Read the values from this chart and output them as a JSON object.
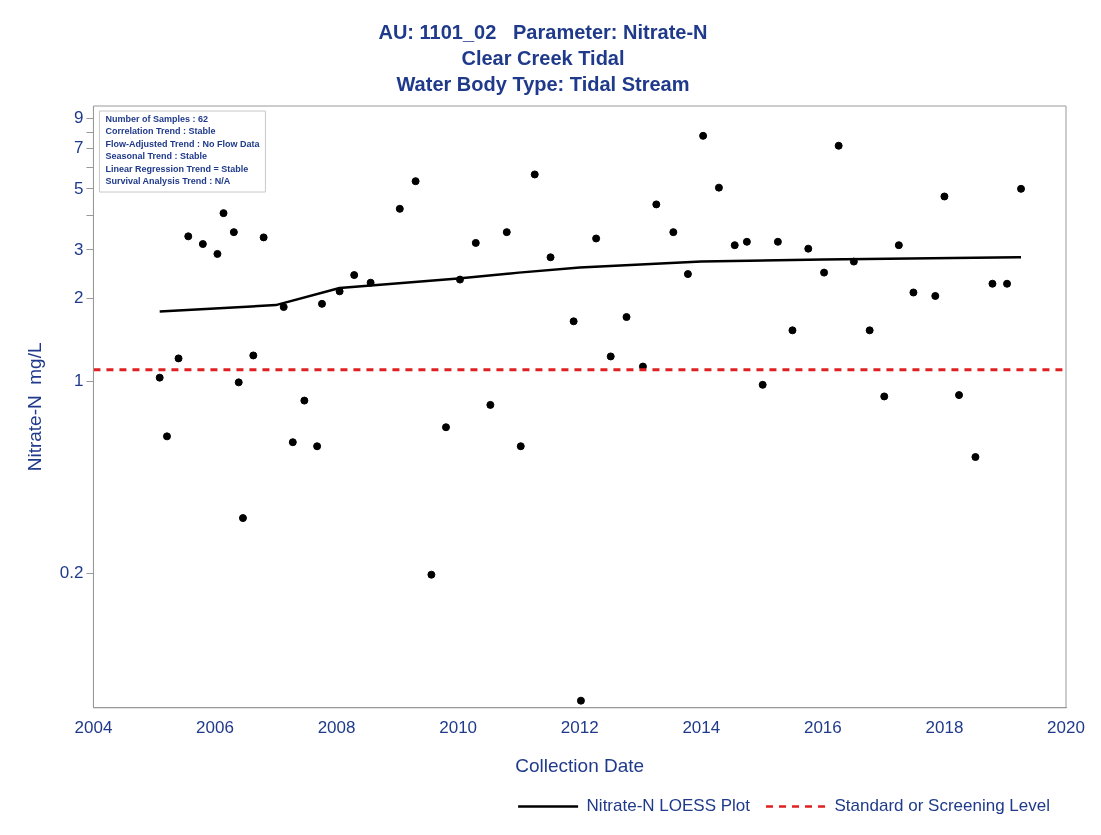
{
  "chart_data": {
    "type": "scatter",
    "title": "AU: 1101_02   Parameter: Nitrate-N",
    "subtitle": "Clear Creek Tidal\nWater Body Type: Tidal Stream",
    "xlabel": "Collection Date",
    "ylabel": "Nitrate-N  mg/L",
    "annotations": [
      "Number of Samples : 62",
      "Correlation Trend : Stable",
      "Flow-Adjusted Trend : No Flow Data",
      "Seasonal Trend : Stable",
      "Linear Regression Trend = Stable",
      "Survival Analysis Trend : N/A"
    ],
    "series": [
      {
        "color": "#000000",
        "marker": "circle",
        "x": [
          2005.09,
          2005.21,
          2005.4,
          2005.56,
          2005.8,
          2006.04,
          2006.14,
          2006.31,
          2006.39,
          2006.46,
          2006.63,
          2006.8,
          2007.13,
          2007.28,
          2007.47,
          2007.68,
          2007.76,
          2008.05,
          2008.29,
          2008.56,
          2009.04,
          2009.3,
          2009.56,
          2009.8,
          2010.03,
          2010.29,
          2010.53,
          2010.8,
          2011.03,
          2011.26,
          2011.52,
          2011.9,
          2012.02,
          2012.27,
          2012.51,
          2012.77,
          2013.04,
          2013.26,
          2013.54,
          2013.78,
          2014.03,
          2014.29,
          2014.55,
          2014.75,
          2015.01,
          2015.26,
          2015.5,
          2015.76,
          2016.02,
          2016.26,
          2016.51,
          2016.77,
          2017.01,
          2017.25,
          2017.49,
          2017.85,
          2018.0,
          2018.24,
          2018.51,
          2018.79,
          2019.03,
          2019.26
        ],
        "values": [
          1.03,
          0.63,
          1.21,
          3.36,
          3.15,
          2.9,
          4.08,
          3.48,
          0.99,
          0.318,
          1.24,
          3.33,
          1.86,
          0.6,
          0.85,
          0.58,
          1.91,
          2.12,
          2.43,
          2.28,
          4.23,
          5.33,
          0.198,
          0.68,
          2.34,
          3.18,
          0.82,
          3.48,
          0.58,
          5.64,
          2.82,
          1.65,
          0.069,
          3.3,
          1.23,
          1.71,
          1.13,
          4.39,
          3.48,
          2.45,
          7.79,
          5.05,
          3.12,
          3.21,
          0.97,
          3.21,
          1.53,
          3.03,
          2.48,
          7.17,
          2.72,
          1.53,
          0.88,
          3.12,
          2.1,
          2.04,
          4.69,
          0.89,
          0.53,
          2.26,
          2.26,
          5.0
        ]
      },
      {
        "type": "line",
        "name": "Nitrate-N LOESS Plot",
        "color": "#000000",
        "marker": "none",
        "line_style": "solid",
        "x": [
          2005.09,
          2007.0,
          2008.05,
          2010.0,
          2011.0,
          2012.0,
          2014.0,
          2016.0,
          2019.26
        ],
        "values": [
          1.79,
          1.89,
          2.18,
          2.36,
          2.48,
          2.59,
          2.72,
          2.77,
          2.82
        ]
      }
    ],
    "ref_lines": [
      {
        "axis": "y",
        "value": 1.1,
        "label": "Standard or Screening Level",
        "color": "#e02020",
        "line_style": "dashed"
      }
    ],
    "xlim": [
      2004,
      2020
    ],
    "xticks": [
      2004,
      2006,
      2008,
      2010,
      2012,
      2014,
      2016,
      2018,
      2020
    ],
    "ylim": [
      0.065,
      10
    ],
    "yticks": [
      0.2,
      1,
      2,
      3,
      {
        "value": 4,
        "label": null
      },
      5,
      {
        "value": 6,
        "label": null
      },
      7,
      {
        "value": 8,
        "label": null
      },
      9
    ],
    "log": "y",
    "grid": false,
    "legend": "bottom right"
  }
}
